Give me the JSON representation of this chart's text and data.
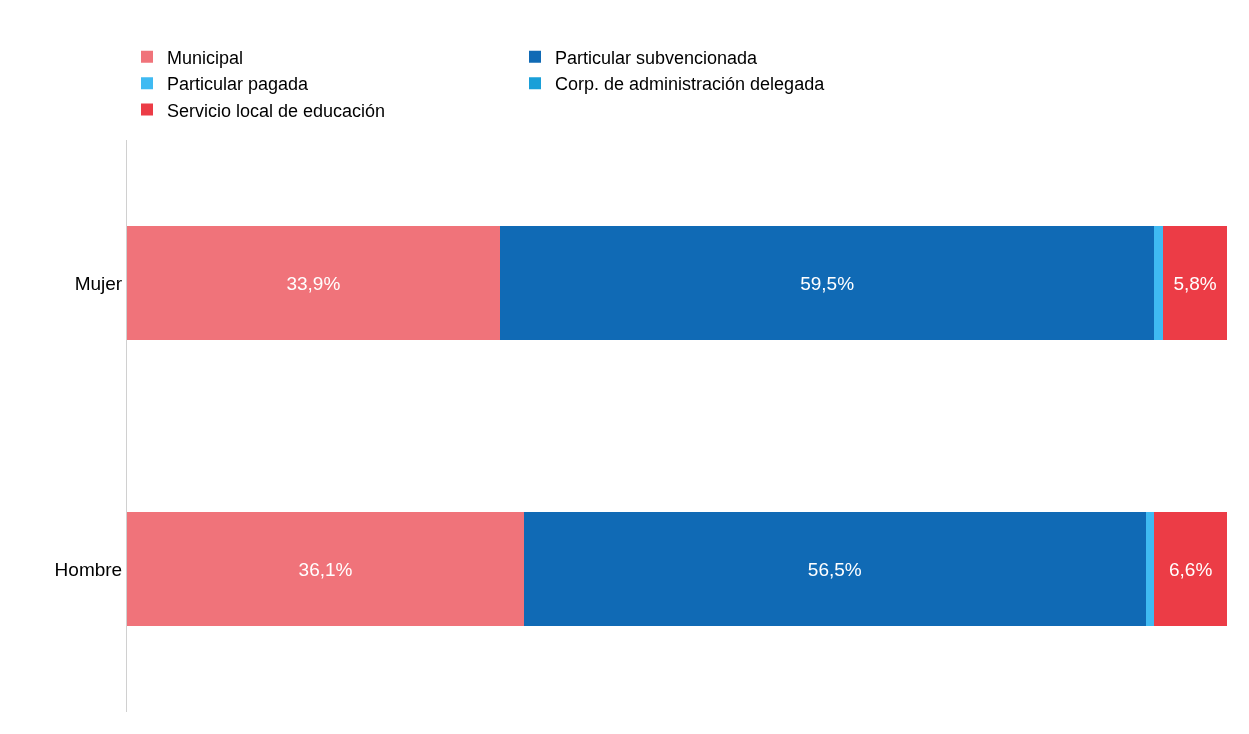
{
  "chart_data": {
    "type": "bar",
    "orientation": "horizontal",
    "stacked": true,
    "categories": [
      "Mujer",
      "Hombre"
    ],
    "xlim": [
      0,
      100
    ],
    "legend": "top left",
    "series": [
      {
        "name": "Municipal",
        "color": "#f0737a",
        "values": [
          33.9,
          36.1
        ],
        "value_labels": [
          "33,9%",
          "36,1%"
        ]
      },
      {
        "name": "Particular subvencionada",
        "color": "#106ab5",
        "values": [
          59.5,
          56.5
        ],
        "value_labels": [
          "59,5%",
          "56,5%"
        ]
      },
      {
        "name": "Particular pagada",
        "color": "#3fbaf2",
        "values": [
          0.8,
          0.8
        ],
        "value_labels": [
          null,
          null
        ]
      },
      {
        "name": "Corp. de administración delegada",
        "color": "#1a9fd8",
        "values": [
          0.0,
          0.0
        ],
        "value_labels": [
          null,
          null
        ]
      },
      {
        "name": "Servicio local de educación",
        "color": "#ec3c46",
        "values": [
          5.8,
          6.6
        ],
        "value_labels": [
          "5,8%",
          "6,6%"
        ]
      }
    ]
  }
}
